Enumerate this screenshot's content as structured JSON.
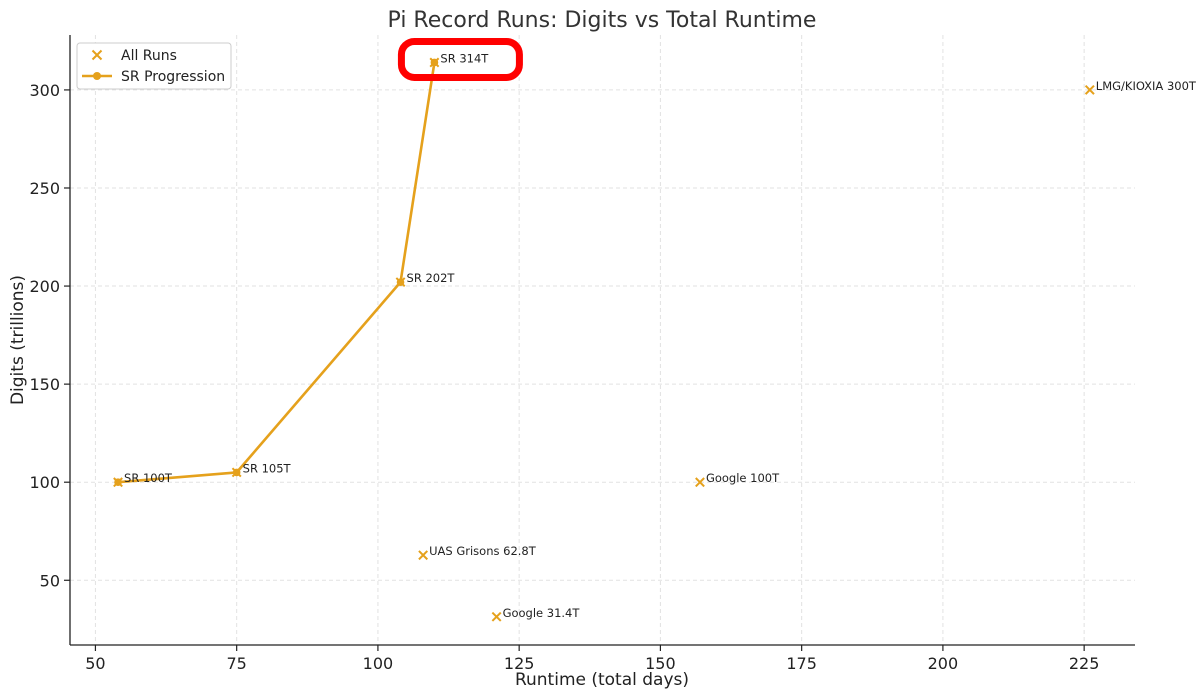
{
  "chart_data": {
    "type": "scatter",
    "title": "Pi Record Runs: Digits vs Total Runtime",
    "xlabel": "Runtime (total days)",
    "ylabel": "Digits (trillions)",
    "xlim": [
      45.5,
      234
    ],
    "ylim": [
      17,
      328
    ],
    "xticks": [
      50,
      75,
      100,
      125,
      150,
      175,
      200,
      225
    ],
    "yticks": [
      50,
      100,
      150,
      200,
      250,
      300
    ],
    "grid": true,
    "legend_position": "top-left",
    "accent_color": "#E5A11C",
    "highlight_color": "#FF0000",
    "highlight_label": "SR 314T",
    "series": [
      {
        "name": "All Runs",
        "marker": "x",
        "points": [
          {
            "x": 54,
            "y": 100,
            "label": "SR 100T"
          },
          {
            "x": 75,
            "y": 105,
            "label": "SR 105T"
          },
          {
            "x": 104,
            "y": 202,
            "label": "SR 202T"
          },
          {
            "x": 110,
            "y": 314,
            "label": "SR 314T"
          },
          {
            "x": 157,
            "y": 100,
            "label": "Google 100T"
          },
          {
            "x": 226,
            "y": 300,
            "label": "LMG/KIOXIA 300T"
          },
          {
            "x": 108,
            "y": 62.8,
            "label": "UAS Grisons 62.8T"
          },
          {
            "x": 121,
            "y": 31.4,
            "label": "Google 31.4T"
          }
        ]
      },
      {
        "name": "SR Progression",
        "marker": "line-circle",
        "points": [
          {
            "x": 54,
            "y": 100
          },
          {
            "x": 75,
            "y": 105
          },
          {
            "x": 104,
            "y": 202
          },
          {
            "x": 110,
            "y": 314
          }
        ]
      }
    ]
  }
}
